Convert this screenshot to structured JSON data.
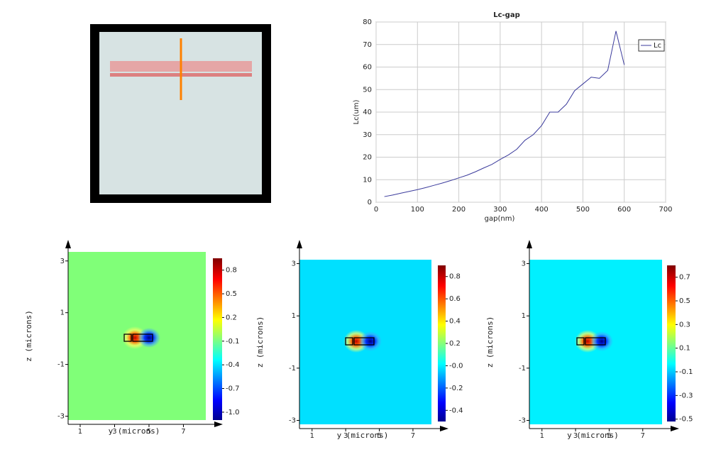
{
  "chart_data": [
    {
      "type": "line",
      "title": "Lc-gap",
      "x_label": "gap(nm)",
      "y_label": "Lc(um)",
      "x": [
        20,
        40,
        60,
        80,
        100,
        120,
        140,
        160,
        180,
        200,
        220,
        240,
        260,
        280,
        300,
        320,
        340,
        360,
        380,
        400,
        420,
        440,
        460,
        480,
        500,
        520,
        540,
        560,
        580,
        600
      ],
      "series": [
        {
          "name": "Lc",
          "color": "#3b3b9c",
          "values": [
            2.5,
            3.2,
            4,
            4.8,
            5.6,
            6.5,
            7.5,
            8.5,
            9.6,
            10.8,
            12,
            13.5,
            15.2,
            16.8,
            19,
            21,
            23.5,
            27.5,
            30,
            34,
            40,
            40,
            43.5,
            49.5,
            52.5,
            55.5,
            55,
            58.5,
            76,
            61
          ]
        }
      ],
      "xlim": [
        0,
        700
      ],
      "xticks": [
        0,
        100,
        200,
        300,
        400,
        500,
        600,
        700
      ],
      "ylim": [
        0,
        80
      ],
      "yticks": [
        0,
        10,
        20,
        30,
        40,
        50,
        60,
        70,
        80
      ],
      "grid": true,
      "legend": "upper right"
    },
    {
      "type": "heatmap",
      "x_label": "y (microns)",
      "y_label": "z (microns)",
      "color": "#80ff78",
      "xlim": [
        0.3,
        8.3
      ],
      "xticks": [
        1,
        3,
        5,
        7
      ],
      "ylim": [
        -3.15,
        3.35
      ],
      "yticks": [
        -3,
        -1,
        1,
        3
      ],
      "clim": [
        -1.1,
        0.95
      ],
      "cticks": [
        0.8,
        0.5,
        0.2,
        -0.1,
        -0.4,
        -0.7,
        {
          "value": -1,
          "label": "-1.0"
        }
      ]
    },
    {
      "type": "heatmap",
      "x_label": "y (microns)",
      "y_label": "z (microns)",
      "color": "#00e0ff",
      "xlim": [
        0.25,
        8.1
      ],
      "xticks": [
        1,
        3,
        5,
        7
      ],
      "ylim": [
        -3.15,
        3.15
      ],
      "yticks": [
        -3,
        -1,
        1,
        3
      ],
      "clim": [
        -0.5,
        0.9
      ],
      "cticks": [
        0.8,
        0.6,
        0.4,
        0.2,
        {
          "value": 0,
          "label": "-0.0"
        },
        -0.2,
        -0.4
      ]
    },
    {
      "type": "heatmap",
      "x_label": "y (microns)",
      "y_label": "z (microns)",
      "color": "#00f0ff",
      "xlim": [
        0.25,
        8.15
      ],
      "xticks": [
        1,
        3,
        5,
        7
      ],
      "ylim": [
        -3.15,
        3.15
      ],
      "yticks": [
        -3,
        -1,
        1,
        3
      ],
      "clim": [
        -0.52,
        0.8
      ],
      "cticks": [
        0.7,
        0.5,
        0.3,
        0.1,
        -0.1,
        -0.3,
        -0.5
      ]
    }
  ]
}
